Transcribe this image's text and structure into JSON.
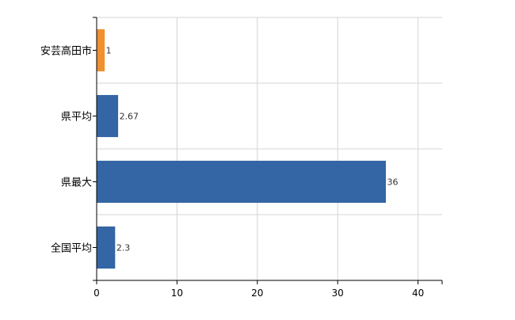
{
  "chart_data": {
    "type": "bar",
    "orientation": "horizontal",
    "categories": [
      "安芸高田市",
      "県平均",
      "県最大",
      "全国平均"
    ],
    "values": [
      1,
      2.67,
      36,
      2.3
    ],
    "value_labels": [
      "1",
      "2.67",
      "36",
      "2.3"
    ],
    "bar_colors": [
      "#f0902f",
      "#3465a4",
      "#3465a4",
      "#3465a4"
    ],
    "xlim": [
      0,
      43
    ],
    "xticks": [
      0,
      10,
      20,
      30,
      40
    ],
    "grid": true,
    "gridline_color": "#d4d4d4",
    "axis_color": "#000000",
    "title": "",
    "xlabel": "",
    "ylabel": ""
  }
}
